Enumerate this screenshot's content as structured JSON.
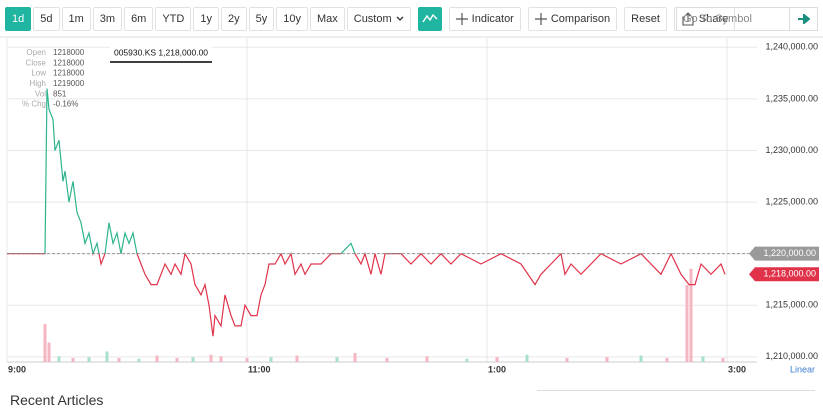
{
  "toolbar": {
    "ranges": [
      {
        "label": "1d",
        "active": true
      },
      {
        "label": "5d",
        "active": false
      },
      {
        "label": "1m",
        "active": false
      },
      {
        "label": "3m",
        "active": false
      },
      {
        "label": "6m",
        "active": false
      },
      {
        "label": "YTD",
        "active": false
      },
      {
        "label": "1y",
        "active": false
      },
      {
        "label": "2y",
        "active": false
      },
      {
        "label": "5y",
        "active": false
      },
      {
        "label": "10y",
        "active": false
      },
      {
        "label": "Max",
        "active": false
      }
    ],
    "custom": "Custom",
    "indicator": "Indicator",
    "comparison": "Comparison",
    "reset": "Reset",
    "share": "Share",
    "search_placeholder": "Go To Symbol"
  },
  "chart_data": {
    "type": "line",
    "symbol_label": "005930.KS 1,218,000.00",
    "tooltip": [
      {
        "label": "Open",
        "value": "1218000"
      },
      {
        "label": "Close",
        "value": "1218000"
      },
      {
        "label": "Low",
        "value": "1218000"
      },
      {
        "label": "High",
        "value": "1219000"
      },
      {
        "label": "Vol",
        "value": "851"
      },
      {
        "label": "% Chg",
        "value": "-0.16%"
      }
    ],
    "x": [
      "9:00",
      "9:19",
      "9:20",
      "9:21",
      "9:23",
      "9:24",
      "9:26",
      "9:28",
      "9:29",
      "9:31",
      "9:33",
      "9:35",
      "9:37",
      "9:39",
      "9:41",
      "9:43",
      "9:45",
      "9:47",
      "9:49",
      "9:51",
      "9:53",
      "9:55",
      "9:57",
      "9:59",
      "10:01",
      "10:03",
      "10:05",
      "10:07",
      "10:09",
      "10:12",
      "10:15",
      "10:17",
      "10:19",
      "10:22",
      "10:24",
      "10:27",
      "10:29",
      "10:32",
      "10:34",
      "10:37",
      "10:39",
      "10:41",
      "10:43",
      "10:44",
      "10:47",
      "10:49",
      "10:52",
      "10:54",
      "10:57",
      "10:59",
      "11:02",
      "11:05",
      "11:07",
      "11:09",
      "11:11",
      "11:14",
      "11:17",
      "11:19",
      "11:22",
      "11:24",
      "11:27",
      "11:29",
      "11:32",
      "11:37",
      "11:42",
      "11:47",
      "11:52",
      "11:54",
      "11:57",
      "11:59",
      "12:02",
      "12:04",
      "12:07",
      "12:09",
      "12:17",
      "12:22",
      "12:27",
      "12:32",
      "12:37",
      "12:42",
      "12:47",
      "12:57",
      "13:07",
      "13:17",
      "13:24",
      "13:27",
      "13:32",
      "13:37",
      "13:39",
      "13:42",
      "13:47",
      "13:57",
      "14:07",
      "14:17",
      "14:27",
      "14:32",
      "14:37",
      "14:41",
      "14:44",
      "14:47",
      "14:52",
      "14:57",
      "14:59"
    ],
    "series": [
      {
        "color": "#e0334a",
        "up_color": "#2db48e",
        "values": [
          1220000,
          1220000,
          1236000,
          1234000,
          1233000,
          1230000,
          1231000,
          1227000,
          1228000,
          1225000,
          1227000,
          1224000,
          1223000,
          1221000,
          1222000,
          1220000,
          1221000,
          1219000,
          1220000,
          1223000,
          1221000,
          1222000,
          1220000,
          1222000,
          1221000,
          1222000,
          1220000,
          1219000,
          1218000,
          1217000,
          1217000,
          1218000,
          1219000,
          1218000,
          1219000,
          1218000,
          1220000,
          1219000,
          1217000,
          1216000,
          1217000,
          1215000,
          1212000,
          1214000,
          1213000,
          1216000,
          1214000,
          1213000,
          1213000,
          1215000,
          1214000,
          1214000,
          1216000,
          1217000,
          1219000,
          1219000,
          1220000,
          1219000,
          1220000,
          1218000,
          1219000,
          1218000,
          1219000,
          1219000,
          1220000,
          1220000,
          1221000,
          1220000,
          1219000,
          1220000,
          1218000,
          1220000,
          1218000,
          1220000,
          1220000,
          1219000,
          1220000,
          1219000,
          1220000,
          1219000,
          1220000,
          1219000,
          1220000,
          1219000,
          1217000,
          1218000,
          1219000,
          1220000,
          1218000,
          1219000,
          1218000,
          1220000,
          1219000,
          1220000,
          1218000,
          1220000,
          1218000,
          1217000,
          1217000,
          1219000,
          1218000,
          1219000,
          1218000
        ]
      }
    ],
    "baseline": {
      "value": 1220000,
      "label": "1,220,000.00",
      "color": "#9a9a9a"
    },
    "last_price": {
      "value": 1218000,
      "label": "1,218,000.00",
      "color": "#e0334a"
    },
    "volume": {
      "axis": "y2",
      "x": [
        "9:19",
        "9:21",
        "9:26",
        "9:33",
        "9:41",
        "9:50",
        "9:56",
        "10:06",
        "10:15",
        "10:25",
        "10:33",
        "10:42",
        "10:47",
        "11:00",
        "11:12",
        "11:25",
        "11:45",
        "11:54",
        "12:10",
        "12:30",
        "12:50",
        "13:05",
        "13:20",
        "13:40",
        "14:00",
        "14:17",
        "14:30",
        "14:40",
        "14:42",
        "14:48",
        "14:58"
      ],
      "values": [
        4700,
        2400,
        700,
        500,
        600,
        1300,
        500,
        400,
        800,
        500,
        600,
        900,
        700,
        500,
        600,
        800,
        600,
        1100,
        500,
        700,
        400,
        600,
        900,
        500,
        600,
        800,
        500,
        9500,
        11500,
        700,
        500
      ],
      "colors": [
        "#f4b6c0",
        "#f4b6c0",
        "#a8e0cf",
        "#f4b6c0",
        "#a8e0cf",
        "#a8e0cf",
        "#f4b6c0",
        "#a8e0cf",
        "#f4b6c0",
        "#f4b6c0",
        "#a8e0cf",
        "#f4b6c0",
        "#f4b6c0",
        "#f4b6c0",
        "#a8e0cf",
        "#f4b6c0",
        "#a8e0cf",
        "#f4b6c0",
        "#f4b6c0",
        "#f4b6c0",
        "#a8e0cf",
        "#f4b6c0",
        "#a8e0cf",
        "#f4b6c0",
        "#f4b6c0",
        "#a8e0cf",
        "#f4b6c0",
        "#f4b6c0",
        "#f4b6c0",
        "#a8e0cf",
        "#f4b6c0"
      ]
    },
    "xlim": [
      "9:00",
      "15:15"
    ],
    "xticks": [
      "9:00",
      "11:00",
      {
        "value": "13:00",
        "label": "1:00"
      },
      {
        "value": "15:00",
        "label": "3:00"
      }
    ],
    "ylim": [
      1209500,
      1240900
    ],
    "yticks": [
      {
        "value": 1210000,
        "label": "1,210,000.00"
      },
      {
        "value": 1215000,
        "label": "1,215,000.00"
      },
      {
        "value": 1220000,
        "label": "1,220,000.00"
      },
      {
        "value": 1225000,
        "label": "1,225,000.00"
      },
      {
        "value": 1230000,
        "label": "1,230,000.00"
      },
      {
        "value": 1235000,
        "label": "1,235,000.00"
      },
      {
        "value": 1240000,
        "label": "1,240,000.00"
      }
    ],
    "y2lim": [
      0,
      40000
    ],
    "grid": true,
    "scale_label": "Linear"
  },
  "footer": {
    "heading": "Recent Articles"
  }
}
